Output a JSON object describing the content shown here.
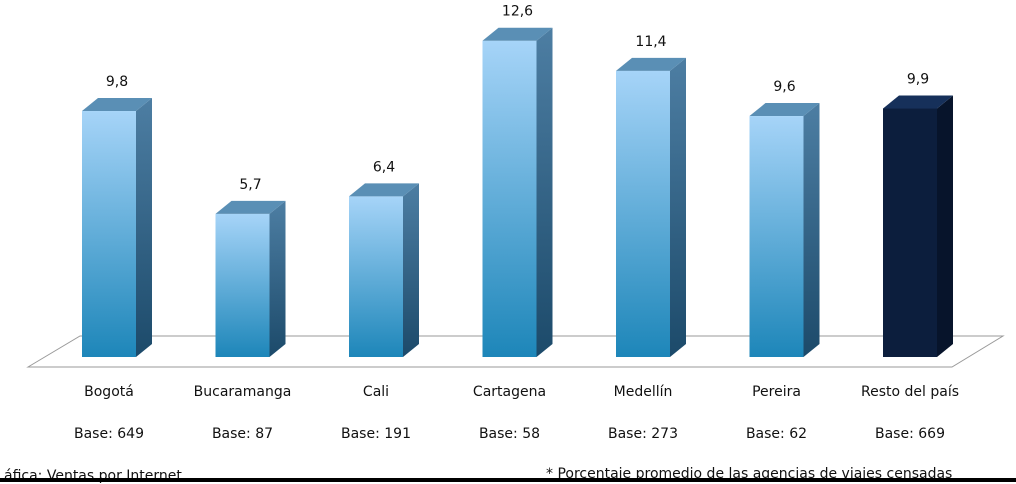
{
  "chart_data": {
    "type": "bar",
    "categories": [
      "Bogotá",
      "Bucaramanga",
      "Cali",
      "Cartagena",
      "Medellín",
      "Pereira",
      "Resto del país"
    ],
    "values": [
      9.8,
      5.7,
      6.4,
      12.6,
      11.4,
      9.6,
      9.9
    ],
    "value_labels": [
      "9,8",
      "5,7",
      "6,4",
      "12,6",
      "11,4",
      "9,6",
      "9,9"
    ],
    "bases": [
      "Base: 649",
      "Base: 87",
      "Base: 191",
      "Base: 58",
      "Base: 273",
      "Base: 62",
      "Base: 669"
    ],
    "highlight_index": 6,
    "colors": {
      "bar_top": "#a6d4f8",
      "bar_bottom": "#1d86b9",
      "bar_side": "#2b5b7c",
      "bar_cap": "#5a8fb5",
      "highlight_front": "#0c1e3d",
      "highlight_side": "#07142b",
      "highlight_cap": "#16305a",
      "floor": "#9a9a9a"
    },
    "style": "3d-column",
    "grid": false,
    "legend": "none"
  },
  "footer": {
    "left_text": "áfica: Ventas por Internet",
    "note": "* Porcentaje promedio de las agencias de viajes censadas"
  }
}
